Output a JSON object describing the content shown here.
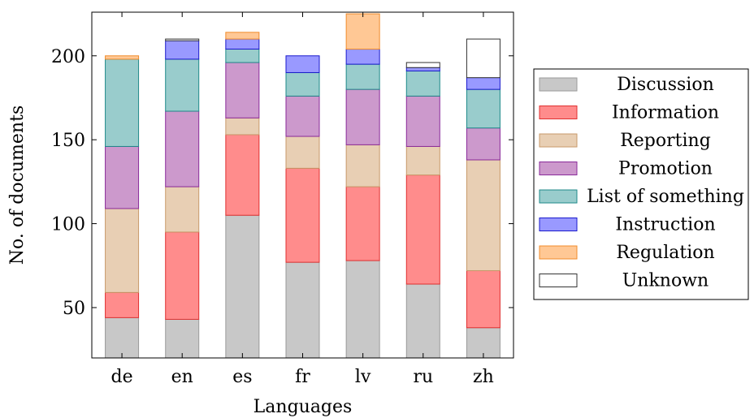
{
  "chart_data": {
    "type": "bar",
    "stacked": true,
    "categories": [
      "de",
      "en",
      "es",
      "fr",
      "lv",
      "ru",
      "zh"
    ],
    "xlabel": "Languages",
    "ylabel": "No. of documents",
    "ylim": [
      20,
      226
    ],
    "yticks": [
      50,
      100,
      150,
      200
    ],
    "grid": false,
    "legend_position": "right",
    "series": [
      {
        "name": "Discussion",
        "color": "#c8c8c8",
        "stroke": "#9a9a9a",
        "values": [
          44,
          43,
          105,
          77,
          78,
          64,
          38
        ]
      },
      {
        "name": "Information",
        "color": "#ff8c8c",
        "stroke": "#e03030",
        "values": [
          15,
          52,
          48,
          56,
          44,
          65,
          34
        ]
      },
      {
        "name": "Reporting",
        "color": "#e8cfb4",
        "stroke": "#c89a6a",
        "values": [
          50,
          27,
          10,
          19,
          25,
          17,
          66
        ]
      },
      {
        "name": "Promotion",
        "color": "#cc99cc",
        "stroke": "#8a2a9a",
        "values": [
          37,
          45,
          33,
          24,
          33,
          30,
          19
        ]
      },
      {
        "name": "List of something",
        "color": "#99cccc",
        "stroke": "#1f8a8a",
        "values": [
          52,
          31,
          8,
          14,
          15,
          15,
          23
        ]
      },
      {
        "name": "Instruction",
        "color": "#9999ff",
        "stroke": "#1a1acc",
        "values": [
          0,
          11,
          6,
          10,
          9,
          2,
          7
        ]
      },
      {
        "name": "Regulation",
        "color": "#ffc895",
        "stroke": "#f08c2c",
        "values": [
          2,
          0,
          4,
          0,
          21,
          0,
          0
        ]
      },
      {
        "name": "Unknown",
        "color": "#ffffff",
        "stroke": "#333333",
        "values": [
          0,
          1,
          0,
          0,
          0,
          3,
          23
        ]
      }
    ]
  }
}
